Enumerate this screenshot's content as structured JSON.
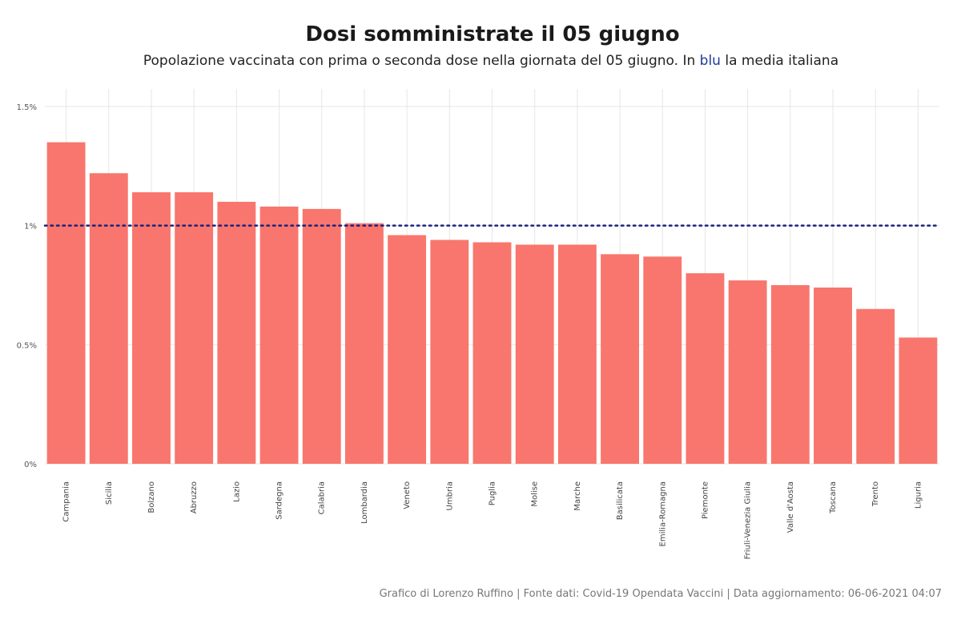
{
  "title": "Dosi somministrate il 05 giugno",
  "subtitle": {
    "before": "Popolazione vaccinata con prima o seconda dose nella giornata del 05 giugno. In ",
    "highlight": "blu",
    "after": " la media italiana"
  },
  "caption": "Grafico di Lorenzo Ruffino | Fonte dati: Covid-19 Opendata Vaccini | Data aggiornamento: 06-06-2021 04:07",
  "colors": {
    "bar": "#f8766d",
    "mean_line": "#1a237e",
    "grid": "#e6e6e6",
    "highlight_text": "#1f3b9b"
  },
  "chart_data": {
    "type": "bar",
    "title": "Dosi somministrate il 05 giugno",
    "xlabel": "",
    "ylabel": "",
    "ylim": [
      0,
      1.5
    ],
    "y_ticks": [
      0,
      0.5,
      1,
      1.5
    ],
    "y_tick_labels": [
      "0%",
      "0.5%",
      "1%",
      "1.5%"
    ],
    "grid": true,
    "categories": [
      "Campania",
      "Sicilia",
      "Bolzano",
      "Abruzzo",
      "Lazio",
      "Sardegna",
      "Calabria",
      "Lombardia",
      "Veneto",
      "Umbria",
      "Puglia",
      "Molise",
      "Marche",
      "Basilicata",
      "Emilia-Romagna",
      "Piemonte",
      "Friuli-Venezia Giulia",
      "Valle d'Aosta",
      "Toscana",
      "Trento",
      "Liguria"
    ],
    "values": [
      1.35,
      1.22,
      1.14,
      1.14,
      1.1,
      1.08,
      1.07,
      1.01,
      0.96,
      0.94,
      0.93,
      0.92,
      0.92,
      0.88,
      0.87,
      0.8,
      0.77,
      0.75,
      0.74,
      0.65,
      0.53
    ],
    "reference_line": {
      "value": 1.0,
      "style": "dotted"
    }
  }
}
